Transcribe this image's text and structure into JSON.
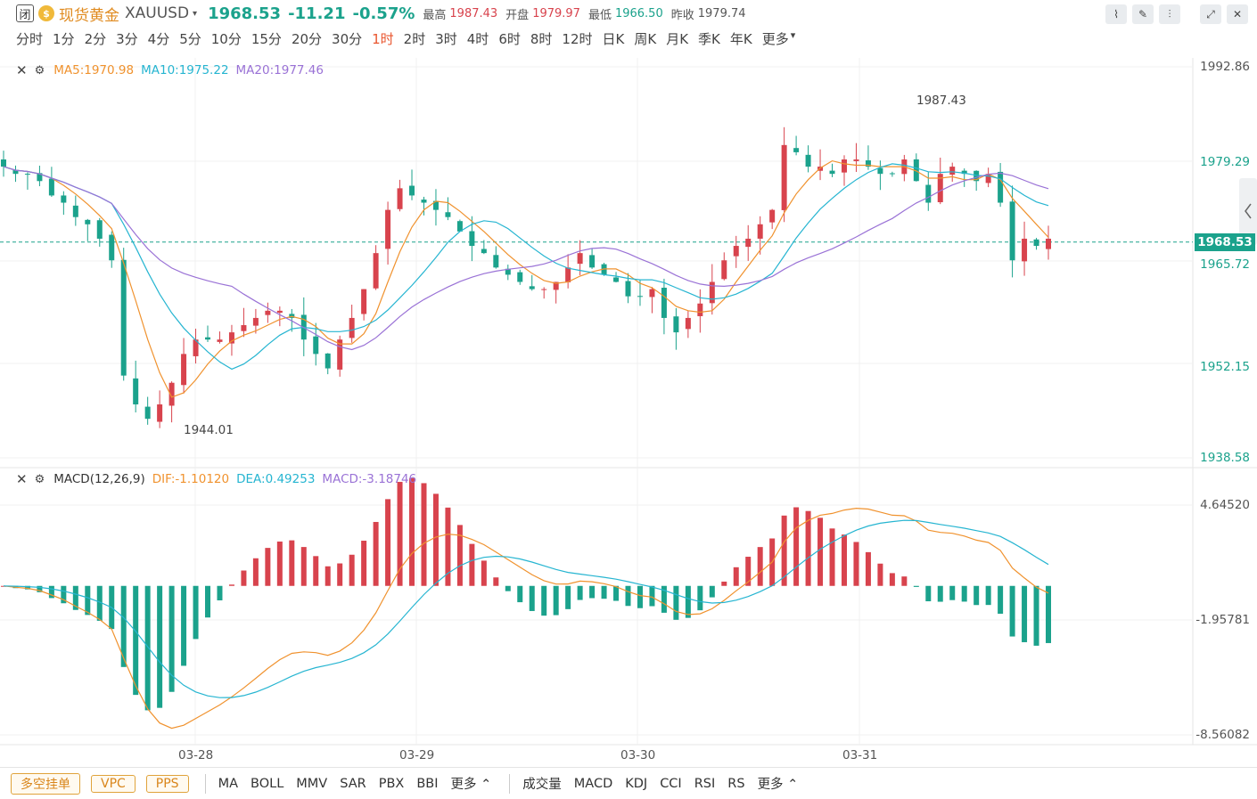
{
  "header": {
    "market_status": "闭",
    "coin_glyph": "$",
    "symbol_name": "现货黄金",
    "symbol_code": "XAUUSD",
    "caret": "▾",
    "price": "1968.53",
    "change": "-11.21",
    "change_pct": "-0.57%",
    "stats": [
      {
        "label": "最高",
        "value": "1987.43",
        "tone": "red"
      },
      {
        "label": "开盘",
        "value": "1979.97",
        "tone": "red"
      },
      {
        "label": "最低",
        "value": "1966.50",
        "tone": "green"
      },
      {
        "label": "昨收",
        "value": "1979.74",
        "tone": "gray"
      }
    ],
    "tools": [
      {
        "name": "line-tool-icon",
        "glyph": "⌇"
      },
      {
        "name": "draw-tool-icon",
        "glyph": "✎"
      },
      {
        "name": "candle-tool-icon",
        "glyph": "⫶"
      },
      {
        "name": "fullscreen-icon",
        "glyph": "⤢"
      },
      {
        "name": "close-icon",
        "glyph": "✕"
      }
    ]
  },
  "periods": {
    "items": [
      "分时",
      "1分",
      "2分",
      "3分",
      "4分",
      "5分",
      "10分",
      "15分",
      "20分",
      "30分",
      "1时",
      "2时",
      "3时",
      "4时",
      "6时",
      "8时",
      "12时",
      "日K",
      "周K",
      "月K",
      "季K",
      "年K",
      "更多"
    ],
    "active": "1时",
    "more_caret": "▾"
  },
  "main_legend": {
    "close_glyph": "✕",
    "gear_glyph": "⚙",
    "ma5": "MA5:1970.98",
    "ma10": "MA10:1975.22",
    "ma20": "MA20:1977.46"
  },
  "macd_legend": {
    "close_glyph": "✕",
    "gear_glyph": "⚙",
    "title": "MACD(12,26,9)",
    "dif": "DIF:-1.10120",
    "dea": "DEA:0.49253",
    "macd": "MACD:-3.18746"
  },
  "price_axis": [
    "1992.86",
    "1979.29",
    "1965.72",
    "1952.15",
    "1938.58"
  ],
  "last_price_tag": "1968.53",
  "macd_axis": [
    "4.64520",
    "-1.95781",
    "-8.56082"
  ],
  "annotations": {
    "high": "1987.43",
    "low": "1944.01"
  },
  "dates": [
    "03-28",
    "03-29",
    "03-30",
    "03-31"
  ],
  "bottom": {
    "buttons": [
      "多空挂单",
      "VPC",
      "PPS"
    ],
    "main_indicators": [
      "MA",
      "BOLL",
      "MMV",
      "SAR",
      "PBX",
      "BBI"
    ],
    "more": "更多 ⌃",
    "sub_indicators": [
      "成交量",
      "MACD",
      "KDJ",
      "CCI",
      "RSI",
      "RS"
    ],
    "more2": "更多 ⌃"
  },
  "colors": {
    "up": "#d8434d",
    "down": "#1ba28c",
    "ma5": "#f0922e",
    "ma10": "#26b5d1",
    "ma20": "#9a72d6",
    "accent": "#e9562f"
  },
  "chart_data": {
    "type": "candlestick",
    "interval": "1时",
    "price_axis_ticks": [
      1992.86,
      1979.29,
      1965.72,
      1952.15,
      1938.58
    ],
    "last_price": 1968.53,
    "high": 1987.43,
    "low": 1944.01,
    "x_labels": [
      "03-28",
      "03-29",
      "03-30",
      "03-31"
    ],
    "close_path": [
      1979,
      1978,
      1978,
      1977,
      1975,
      1974,
      1972,
      1971,
      1969,
      1966,
      1950,
      1946,
      1944,
      1946,
      1949,
      1953,
      1955,
      1955,
      1955,
      1956,
      1957,
      1958,
      1959,
      1959,
      1958,
      1955,
      1953,
      1951,
      1955,
      1958,
      1962,
      1967,
      1973,
      1976,
      1975,
      1974,
      1973,
      1972,
      1970,
      1968,
      1967,
      1965,
      1964,
      1963,
      1962,
      1962,
      1963,
      1965,
      1967,
      1965,
      1964,
      1963,
      1961,
      1961,
      1962,
      1958,
      1956,
      1958,
      1960,
      1963,
      1966,
      1968,
      1969,
      1971,
      1973,
      1982,
      1981,
      1979,
      1979,
      1978,
      1980,
      1980,
      1979,
      1978,
      1978,
      1980,
      1977,
      1974,
      1978,
      1979,
      1978,
      1977,
      1978,
      1974,
      1966,
      1969,
      1968,
      1969
    ],
    "macd_axis_ticks": [
      4.6452,
      -1.95781,
      -8.56082
    ],
    "dif": -1.1012,
    "dea": 0.49253,
    "macd": -3.18746
  }
}
